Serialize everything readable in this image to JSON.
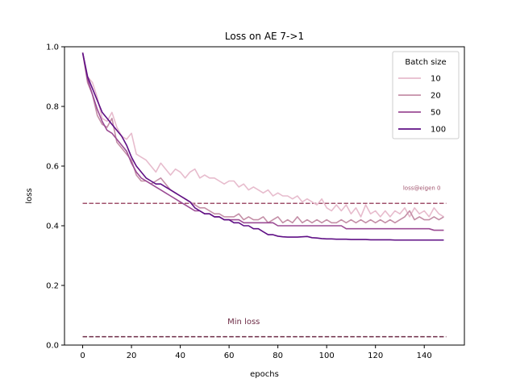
{
  "chart_data": {
    "type": "line",
    "title": "Loss on AE 7->1",
    "xlabel": "epochs",
    "ylabel": "loss",
    "xlim": [
      -7.45,
      156.45
    ],
    "ylim": [
      0.0,
      1.0
    ],
    "xticks": [
      0,
      20,
      40,
      60,
      80,
      100,
      120,
      140
    ],
    "yticks": [
      0.0,
      0.2,
      0.4,
      0.6,
      0.8,
      1.0
    ],
    "ytick_labels": [
      "0.0",
      "0.2",
      "0.4",
      "0.6",
      "0.8",
      "1.0"
    ],
    "grid": false,
    "legend": {
      "title": "Batch size",
      "placement": "upper-right"
    },
    "series": [
      {
        "name": "10",
        "color": "#e7bccd",
        "points": [
          [
            0,
            0.98
          ],
          [
            2,
            0.9
          ],
          [
            4,
            0.88
          ],
          [
            6,
            0.83
          ],
          [
            8,
            0.76
          ],
          [
            10,
            0.75
          ],
          [
            12,
            0.78
          ],
          [
            14,
            0.73
          ],
          [
            16,
            0.7
          ],
          [
            18,
            0.69
          ],
          [
            20,
            0.71
          ],
          [
            22,
            0.64
          ],
          [
            24,
            0.63
          ],
          [
            26,
            0.62
          ],
          [
            28,
            0.6
          ],
          [
            30,
            0.58
          ],
          [
            32,
            0.61
          ],
          [
            34,
            0.59
          ],
          [
            36,
            0.57
          ],
          [
            38,
            0.59
          ],
          [
            40,
            0.58
          ],
          [
            42,
            0.56
          ],
          [
            44,
            0.58
          ],
          [
            46,
            0.59
          ],
          [
            48,
            0.56
          ],
          [
            50,
            0.57
          ],
          [
            52,
            0.56
          ],
          [
            54,
            0.56
          ],
          [
            56,
            0.55
          ],
          [
            58,
            0.54
          ],
          [
            60,
            0.55
          ],
          [
            62,
            0.55
          ],
          [
            64,
            0.53
          ],
          [
            66,
            0.54
          ],
          [
            68,
            0.52
          ],
          [
            70,
            0.53
          ],
          [
            72,
            0.52
          ],
          [
            74,
            0.51
          ],
          [
            76,
            0.52
          ],
          [
            78,
            0.5
          ],
          [
            80,
            0.51
          ],
          [
            82,
            0.5
          ],
          [
            84,
            0.5
          ],
          [
            86,
            0.49
          ],
          [
            88,
            0.5
          ],
          [
            90,
            0.48
          ],
          [
            92,
            0.49
          ],
          [
            94,
            0.48
          ],
          [
            96,
            0.47
          ],
          [
            98,
            0.49
          ],
          [
            100,
            0.46
          ],
          [
            102,
            0.45
          ],
          [
            104,
            0.47
          ],
          [
            106,
            0.45
          ],
          [
            108,
            0.47
          ],
          [
            110,
            0.44
          ],
          [
            112,
            0.46
          ],
          [
            114,
            0.43
          ],
          [
            116,
            0.47
          ],
          [
            118,
            0.44
          ],
          [
            120,
            0.45
          ],
          [
            122,
            0.43
          ],
          [
            124,
            0.45
          ],
          [
            126,
            0.43
          ],
          [
            128,
            0.45
          ],
          [
            130,
            0.44
          ],
          [
            132,
            0.46
          ],
          [
            134,
            0.43
          ],
          [
            136,
            0.46
          ],
          [
            138,
            0.44
          ],
          [
            140,
            0.45
          ],
          [
            142,
            0.43
          ],
          [
            144,
            0.46
          ],
          [
            146,
            0.44
          ],
          [
            148,
            0.43
          ]
        ]
      },
      {
        "name": "20",
        "color": "#c48fa7",
        "points": [
          [
            0,
            0.98
          ],
          [
            2,
            0.88
          ],
          [
            4,
            0.84
          ],
          [
            6,
            0.77
          ],
          [
            8,
            0.74
          ],
          [
            10,
            0.73
          ],
          [
            12,
            0.76
          ],
          [
            14,
            0.68
          ],
          [
            16,
            0.66
          ],
          [
            18,
            0.64
          ],
          [
            20,
            0.62
          ],
          [
            22,
            0.57
          ],
          [
            24,
            0.55
          ],
          [
            26,
            0.55
          ],
          [
            28,
            0.54
          ],
          [
            30,
            0.55
          ],
          [
            32,
            0.56
          ],
          [
            34,
            0.54
          ],
          [
            36,
            0.52
          ],
          [
            38,
            0.51
          ],
          [
            40,
            0.5
          ],
          [
            42,
            0.49
          ],
          [
            44,
            0.48
          ],
          [
            46,
            0.47
          ],
          [
            48,
            0.46
          ],
          [
            50,
            0.46
          ],
          [
            52,
            0.45
          ],
          [
            54,
            0.44
          ],
          [
            56,
            0.44
          ],
          [
            58,
            0.43
          ],
          [
            60,
            0.43
          ],
          [
            62,
            0.43
          ],
          [
            64,
            0.44
          ],
          [
            66,
            0.42
          ],
          [
            68,
            0.43
          ],
          [
            70,
            0.42
          ],
          [
            72,
            0.42
          ],
          [
            74,
            0.43
          ],
          [
            76,
            0.41
          ],
          [
            78,
            0.42
          ],
          [
            80,
            0.43
          ],
          [
            82,
            0.41
          ],
          [
            84,
            0.42
          ],
          [
            86,
            0.41
          ],
          [
            88,
            0.43
          ],
          [
            90,
            0.41
          ],
          [
            92,
            0.42
          ],
          [
            94,
            0.41
          ],
          [
            96,
            0.42
          ],
          [
            98,
            0.41
          ],
          [
            100,
            0.42
          ],
          [
            102,
            0.41
          ],
          [
            104,
            0.41
          ],
          [
            106,
            0.42
          ],
          [
            108,
            0.41
          ],
          [
            110,
            0.42
          ],
          [
            112,
            0.41
          ],
          [
            114,
            0.42
          ],
          [
            116,
            0.41
          ],
          [
            118,
            0.42
          ],
          [
            120,
            0.41
          ],
          [
            122,
            0.42
          ],
          [
            124,
            0.41
          ],
          [
            126,
            0.42
          ],
          [
            128,
            0.41
          ],
          [
            130,
            0.42
          ],
          [
            132,
            0.43
          ],
          [
            134,
            0.45
          ],
          [
            136,
            0.42
          ],
          [
            138,
            0.43
          ],
          [
            140,
            0.42
          ],
          [
            142,
            0.42
          ],
          [
            144,
            0.43
          ],
          [
            146,
            0.42
          ],
          [
            148,
            0.43
          ]
        ]
      },
      {
        "name": "50",
        "color": "#9b4b94",
        "points": [
          [
            0,
            0.98
          ],
          [
            2,
            0.89
          ],
          [
            4,
            0.84
          ],
          [
            6,
            0.79
          ],
          [
            8,
            0.75
          ],
          [
            10,
            0.72
          ],
          [
            12,
            0.71
          ],
          [
            14,
            0.69
          ],
          [
            16,
            0.67
          ],
          [
            18,
            0.65
          ],
          [
            20,
            0.61
          ],
          [
            22,
            0.58
          ],
          [
            24,
            0.56
          ],
          [
            26,
            0.55
          ],
          [
            28,
            0.54
          ],
          [
            30,
            0.53
          ],
          [
            32,
            0.52
          ],
          [
            34,
            0.51
          ],
          [
            36,
            0.5
          ],
          [
            38,
            0.49
          ],
          [
            40,
            0.48
          ],
          [
            42,
            0.47
          ],
          [
            44,
            0.46
          ],
          [
            46,
            0.45
          ],
          [
            48,
            0.45
          ],
          [
            50,
            0.44
          ],
          [
            52,
            0.44
          ],
          [
            54,
            0.43
          ],
          [
            56,
            0.43
          ],
          [
            58,
            0.42
          ],
          [
            60,
            0.42
          ],
          [
            62,
            0.42
          ],
          [
            64,
            0.42
          ],
          [
            66,
            0.41
          ],
          [
            68,
            0.41
          ],
          [
            70,
            0.41
          ],
          [
            72,
            0.41
          ],
          [
            74,
            0.41
          ],
          [
            76,
            0.41
          ],
          [
            78,
            0.41
          ],
          [
            80,
            0.4
          ],
          [
            82,
            0.4
          ],
          [
            84,
            0.4
          ],
          [
            86,
            0.4
          ],
          [
            88,
            0.4
          ],
          [
            90,
            0.4
          ],
          [
            92,
            0.4
          ],
          [
            94,
            0.4
          ],
          [
            96,
            0.4
          ],
          [
            98,
            0.4
          ],
          [
            100,
            0.4
          ],
          [
            102,
            0.4
          ],
          [
            104,
            0.4
          ],
          [
            106,
            0.4
          ],
          [
            108,
            0.39
          ],
          [
            110,
            0.39
          ],
          [
            112,
            0.39
          ],
          [
            114,
            0.39
          ],
          [
            116,
            0.39
          ],
          [
            118,
            0.39
          ],
          [
            120,
            0.39
          ],
          [
            122,
            0.39
          ],
          [
            124,
            0.39
          ],
          [
            126,
            0.39
          ],
          [
            128,
            0.39
          ],
          [
            130,
            0.39
          ],
          [
            132,
            0.39
          ],
          [
            134,
            0.39
          ],
          [
            136,
            0.39
          ],
          [
            138,
            0.39
          ],
          [
            140,
            0.39
          ],
          [
            142,
            0.39
          ],
          [
            144,
            0.385
          ],
          [
            146,
            0.385
          ],
          [
            148,
            0.385
          ]
        ]
      },
      {
        "name": "100",
        "color": "#5f0f85",
        "points": [
          [
            0,
            0.98
          ],
          [
            2,
            0.9
          ],
          [
            4,
            0.86
          ],
          [
            6,
            0.82
          ],
          [
            8,
            0.78
          ],
          [
            10,
            0.76
          ],
          [
            12,
            0.74
          ],
          [
            14,
            0.72
          ],
          [
            16,
            0.7
          ],
          [
            18,
            0.67
          ],
          [
            20,
            0.63
          ],
          [
            22,
            0.6
          ],
          [
            24,
            0.58
          ],
          [
            26,
            0.56
          ],
          [
            28,
            0.55
          ],
          [
            30,
            0.54
          ],
          [
            32,
            0.54
          ],
          [
            34,
            0.53
          ],
          [
            36,
            0.52
          ],
          [
            38,
            0.51
          ],
          [
            40,
            0.5
          ],
          [
            42,
            0.49
          ],
          [
            44,
            0.48
          ],
          [
            46,
            0.46
          ],
          [
            48,
            0.45
          ],
          [
            50,
            0.44
          ],
          [
            52,
            0.44
          ],
          [
            54,
            0.43
          ],
          [
            56,
            0.43
          ],
          [
            58,
            0.42
          ],
          [
            60,
            0.42
          ],
          [
            62,
            0.41
          ],
          [
            64,
            0.41
          ],
          [
            66,
            0.4
          ],
          [
            68,
            0.4
          ],
          [
            70,
            0.39
          ],
          [
            72,
            0.39
          ],
          [
            74,
            0.38
          ],
          [
            76,
            0.37
          ],
          [
            78,
            0.37
          ],
          [
            80,
            0.365
          ],
          [
            82,
            0.363
          ],
          [
            84,
            0.362
          ],
          [
            86,
            0.362
          ],
          [
            88,
            0.362
          ],
          [
            90,
            0.363
          ],
          [
            92,
            0.364
          ],
          [
            94,
            0.36
          ],
          [
            96,
            0.359
          ],
          [
            98,
            0.357
          ],
          [
            100,
            0.356
          ],
          [
            102,
            0.356
          ],
          [
            104,
            0.355
          ],
          [
            106,
            0.355
          ],
          [
            108,
            0.355
          ],
          [
            110,
            0.354
          ],
          [
            112,
            0.354
          ],
          [
            114,
            0.354
          ],
          [
            116,
            0.354
          ],
          [
            118,
            0.353
          ],
          [
            120,
            0.353
          ],
          [
            122,
            0.353
          ],
          [
            124,
            0.353
          ],
          [
            126,
            0.353
          ],
          [
            128,
            0.352
          ],
          [
            130,
            0.352
          ],
          [
            132,
            0.352
          ],
          [
            134,
            0.352
          ],
          [
            136,
            0.352
          ],
          [
            138,
            0.352
          ],
          [
            140,
            0.352
          ],
          [
            142,
            0.352
          ],
          [
            144,
            0.352
          ],
          [
            146,
            0.352
          ],
          [
            148,
            0.352
          ]
        ]
      }
    ],
    "reference_lines": [
      {
        "label": "loss@eigen 0",
        "y": 0.475,
        "x_range": [
          0,
          149
        ],
        "color": "#a0526c",
        "style": "dashed",
        "label_x": 139,
        "label_y": 0.52
      },
      {
        "label": "Min loss",
        "y": 0.028,
        "x_range": [
          0,
          149
        ],
        "color": "#6e2d47",
        "style": "dashed",
        "label_x": 66,
        "label_y": 0.07
      }
    ]
  }
}
